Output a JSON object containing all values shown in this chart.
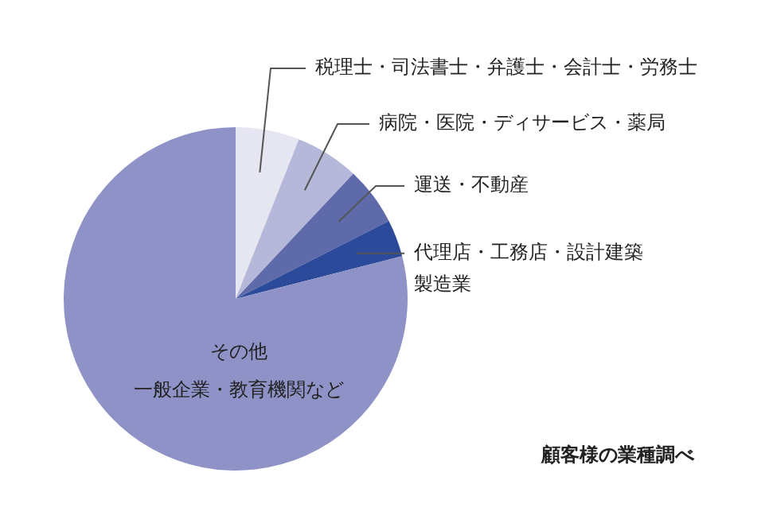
{
  "chart_data": {
    "type": "pie",
    "title": "顧客様の業種調べ",
    "categories": [
      "税理士・司法書士・弁護士・会計士・労務士",
      "病院・医院・ディサービス・薬局",
      "運送・不動産",
      "代理店・工務店・設計建築製造業",
      "その他"
    ],
    "annotations": [
      "一般企業・教育機関など"
    ],
    "values": [
      6,
      6,
      5.5,
      3.5,
      79
    ],
    "colors": [
      "#e6e6f2",
      "#b6b8d9",
      "#5f6aaa",
      "#2b4a9a",
      "#8e92c6"
    ]
  }
}
